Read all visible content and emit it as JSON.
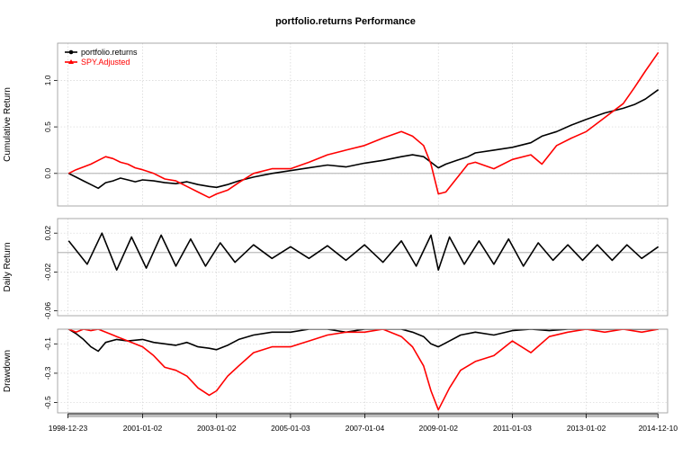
{
  "chart_data": [
    {
      "type": "line",
      "panel": "cumulative",
      "title": "portfolio.returns Performance",
      "ylabel": "Cumulative Return",
      "ylim": [
        -0.35,
        1.4
      ],
      "y_ticks": [
        "0.0",
        "0.5",
        "1.0"
      ],
      "y_tick_values": [
        0.0,
        0.5,
        1.0
      ],
      "legend": {
        "placement": "top-left",
        "entries": [
          "portfolio.returns",
          "SPY.Adjusted"
        ]
      },
      "grid": true,
      "series": [
        {
          "name": "portfolio.returns",
          "color": "#000000",
          "x": [
            1999.0,
            1999.2,
            1999.4,
            1999.6,
            1999.8,
            2000.0,
            2000.2,
            2000.4,
            2000.6,
            2000.8,
            2001.0,
            2001.3,
            2001.6,
            2001.9,
            2002.2,
            2002.5,
            2002.8,
            2003.0,
            2003.3,
            2003.6,
            2004.0,
            2004.5,
            2005.0,
            2005.5,
            2006.0,
            2006.5,
            2007.0,
            2007.5,
            2008.0,
            2008.3,
            2008.6,
            2008.8,
            2009.0,
            2009.2,
            2009.5,
            2009.8,
            2010.0,
            2010.5,
            2011.0,
            2011.5,
            2011.8,
            2012.2,
            2012.6,
            2013.0,
            2013.5,
            2014.0,
            2014.3,
            2014.6,
            2014.95
          ],
          "values": [
            0.0,
            -0.04,
            -0.08,
            -0.12,
            -0.16,
            -0.1,
            -0.08,
            -0.05,
            -0.07,
            -0.09,
            -0.07,
            -0.08,
            -0.1,
            -0.11,
            -0.09,
            -0.12,
            -0.14,
            -0.15,
            -0.12,
            -0.08,
            -0.04,
            0.0,
            0.03,
            0.06,
            0.09,
            0.07,
            0.11,
            0.14,
            0.18,
            0.2,
            0.18,
            0.12,
            0.06,
            0.1,
            0.14,
            0.18,
            0.22,
            0.25,
            0.28,
            0.33,
            0.4,
            0.45,
            0.52,
            0.58,
            0.65,
            0.7,
            0.74,
            0.8,
            0.9
          ]
        },
        {
          "name": "SPY.Adjusted",
          "color": "#ff0000",
          "x": [
            1999.0,
            1999.2,
            1999.4,
            1999.6,
            1999.8,
            2000.0,
            2000.2,
            2000.4,
            2000.6,
            2000.8,
            2001.0,
            2001.3,
            2001.6,
            2001.9,
            2002.2,
            2002.5,
            2002.8,
            2003.0,
            2003.3,
            2003.6,
            2004.0,
            2004.5,
            2005.0,
            2005.5,
            2006.0,
            2006.5,
            2007.0,
            2007.5,
            2008.0,
            2008.3,
            2008.6,
            2008.8,
            2009.0,
            2009.2,
            2009.5,
            2009.8,
            2010.0,
            2010.5,
            2011.0,
            2011.5,
            2011.8,
            2012.2,
            2012.6,
            2013.0,
            2013.5,
            2014.0,
            2014.3,
            2014.6,
            2014.95
          ],
          "values": [
            0.0,
            0.04,
            0.07,
            0.1,
            0.14,
            0.18,
            0.16,
            0.12,
            0.1,
            0.06,
            0.04,
            0.0,
            -0.06,
            -0.08,
            -0.14,
            -0.2,
            -0.26,
            -0.22,
            -0.18,
            -0.1,
            0.0,
            0.05,
            0.05,
            0.12,
            0.2,
            0.25,
            0.3,
            0.38,
            0.45,
            0.4,
            0.3,
            0.1,
            -0.22,
            -0.2,
            -0.05,
            0.1,
            0.12,
            0.05,
            0.15,
            0.2,
            0.1,
            0.3,
            0.38,
            0.45,
            0.6,
            0.75,
            0.92,
            1.1,
            1.3
          ]
        }
      ]
    },
    {
      "type": "line",
      "panel": "daily",
      "ylabel": "Daily Return",
      "ylim": [
        -0.065,
        0.035
      ],
      "y_ticks": [
        "0.02",
        "-0.02",
        "-0.06"
      ],
      "y_tick_values": [
        0.02,
        -0.02,
        -0.06
      ],
      "grid": true,
      "series": [
        {
          "name": "portfolio.returns",
          "color": "#000000",
          "x": [
            1999.0,
            1999.5,
            1999.9,
            2000.3,
            2000.7,
            2001.1,
            2001.5,
            2001.9,
            2002.3,
            2002.7,
            2003.1,
            2003.5,
            2004.0,
            2004.5,
            2005.0,
            2005.5,
            2006.0,
            2006.5,
            2007.0,
            2007.5,
            2008.0,
            2008.4,
            2008.8,
            2009.0,
            2009.3,
            2009.7,
            2010.1,
            2010.5,
            2010.9,
            2011.3,
            2011.7,
            2012.1,
            2012.5,
            2012.9,
            2013.3,
            2013.7,
            2014.1,
            2014.5,
            2014.95
          ],
          "values": [
            0.012,
            -0.012,
            0.02,
            -0.018,
            0.016,
            -0.016,
            0.018,
            -0.014,
            0.014,
            -0.014,
            0.01,
            -0.01,
            0.008,
            -0.006,
            0.006,
            -0.006,
            0.007,
            -0.008,
            0.008,
            -0.01,
            0.012,
            -0.014,
            0.018,
            -0.018,
            0.016,
            -0.012,
            0.012,
            -0.012,
            0.014,
            -0.014,
            0.01,
            -0.008,
            0.008,
            -0.008,
            0.008,
            -0.008,
            0.008,
            -0.006,
            0.006
          ]
        }
      ]
    },
    {
      "type": "area",
      "panel": "drawdown",
      "ylabel": "Drawdown",
      "ylim": [
        -0.57,
        0.0
      ],
      "y_ticks": [
        "-0.1",
        "-0.3",
        "-0.5"
      ],
      "y_tick_values": [
        -0.1,
        -0.3,
        -0.5
      ],
      "x_tick_labels": [
        "1998-12-23",
        "2001-01-02",
        "2003-01-02",
        "2005-01-03",
        "2007-01-04",
        "2009-01-02",
        "2011-01-03",
        "2013-01-02",
        "2014-12-10"
      ],
      "x_tick_values": [
        1998.98,
        2001.0,
        2003.0,
        2005.0,
        2007.01,
        2009.0,
        2011.0,
        2013.0,
        2014.94
      ],
      "grid": true,
      "series": [
        {
          "name": "portfolio.returns",
          "color": "#000000",
          "x": [
            1999.0,
            1999.2,
            1999.4,
            1999.6,
            1999.8,
            2000.0,
            2000.3,
            2000.6,
            2001.0,
            2001.3,
            2001.6,
            2001.9,
            2002.2,
            2002.5,
            2002.8,
            2003.0,
            2003.3,
            2003.6,
            2004.0,
            2004.5,
            2005.0,
            2005.5,
            2006.0,
            2006.5,
            2007.0,
            2007.5,
            2008.0,
            2008.3,
            2008.6,
            2008.8,
            2009.0,
            2009.3,
            2009.6,
            2010.0,
            2010.5,
            2011.0,
            2011.5,
            2012.0,
            2012.5,
            2013.0,
            2013.5,
            2014.0,
            2014.5,
            2014.95
          ],
          "values": [
            0.0,
            -0.03,
            -0.07,
            -0.12,
            -0.15,
            -0.09,
            -0.07,
            -0.08,
            -0.07,
            -0.09,
            -0.1,
            -0.11,
            -0.09,
            -0.12,
            -0.13,
            -0.14,
            -0.11,
            -0.07,
            -0.04,
            -0.02,
            -0.02,
            0.0,
            0.0,
            -0.02,
            0.0,
            0.0,
            0.0,
            -0.02,
            -0.05,
            -0.1,
            -0.12,
            -0.08,
            -0.04,
            -0.02,
            -0.04,
            -0.01,
            0.0,
            -0.01,
            0.0,
            0.0,
            0.0,
            0.0,
            0.0,
            0.0
          ]
        },
        {
          "name": "SPY.Adjusted",
          "color": "#ff0000",
          "x": [
            1999.0,
            1999.2,
            1999.4,
            1999.6,
            1999.8,
            2000.0,
            2000.3,
            2000.6,
            2001.0,
            2001.3,
            2001.6,
            2001.9,
            2002.2,
            2002.5,
            2002.8,
            2003.0,
            2003.3,
            2003.6,
            2004.0,
            2004.5,
            2005.0,
            2005.5,
            2006.0,
            2006.5,
            2007.0,
            2007.5,
            2008.0,
            2008.3,
            2008.6,
            2008.8,
            2009.0,
            2009.3,
            2009.6,
            2010.0,
            2010.5,
            2011.0,
            2011.5,
            2012.0,
            2012.5,
            2013.0,
            2013.5,
            2014.0,
            2014.5,
            2014.95
          ],
          "values": [
            0.0,
            -0.02,
            0.0,
            -0.01,
            0.0,
            -0.02,
            -0.05,
            -0.08,
            -0.12,
            -0.18,
            -0.26,
            -0.28,
            -0.32,
            -0.4,
            -0.45,
            -0.42,
            -0.32,
            -0.25,
            -0.16,
            -0.12,
            -0.12,
            -0.08,
            -0.04,
            -0.02,
            -0.02,
            0.0,
            -0.05,
            -0.12,
            -0.25,
            -0.42,
            -0.55,
            -0.4,
            -0.28,
            -0.22,
            -0.18,
            -0.08,
            -0.16,
            -0.05,
            -0.02,
            0.0,
            -0.02,
            0.0,
            -0.02,
            0.0
          ]
        }
      ]
    }
  ]
}
